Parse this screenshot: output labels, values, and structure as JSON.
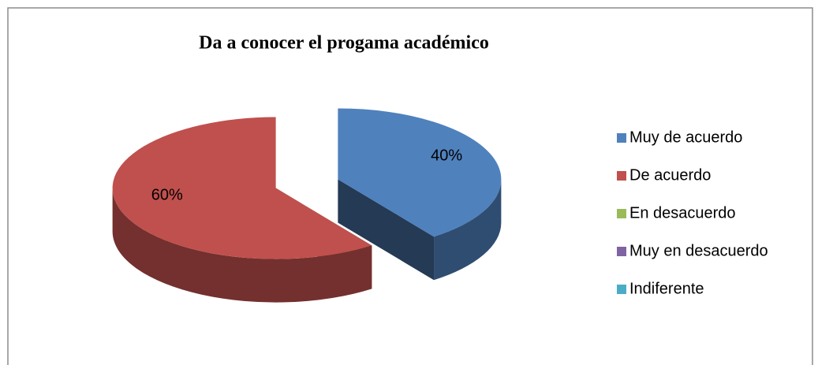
{
  "chart_data": {
    "type": "pie3d",
    "title": "Da a conocer el progama académico",
    "categories": [
      "Muy de acuerdo",
      "De acuerdo",
      "En desacuerdo",
      "Muy en desacuerdo",
      "Indiferente"
    ],
    "values": [
      40,
      60,
      0,
      0,
      0
    ],
    "value_labels": [
      "40%",
      "60%",
      null,
      null,
      null
    ],
    "colors": [
      "#4f81bd",
      "#c0504d",
      "#9bbb59",
      "#8064a2",
      "#4bacc6"
    ],
    "legend": "right"
  }
}
